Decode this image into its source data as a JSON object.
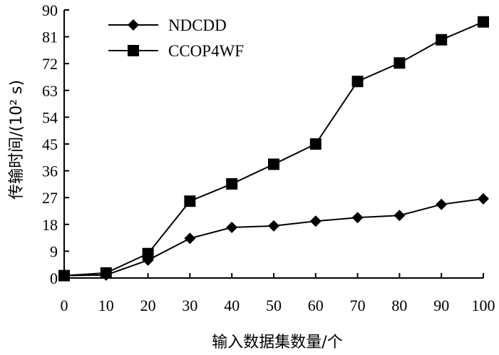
{
  "chart_data": {
    "type": "line",
    "xlabel": "输入数据集数量/个",
    "ylabel": "传输时间/(10² s)",
    "x": [
      0,
      10,
      20,
      30,
      40,
      50,
      60,
      70,
      80,
      90,
      100
    ],
    "xticks": [
      "0",
      "10",
      "20",
      "30",
      "40",
      "50",
      "60",
      "70",
      "80",
      "90",
      "100"
    ],
    "yticks": [
      "0",
      "9",
      "18",
      "27",
      "36",
      "45",
      "54",
      "63",
      "72",
      "81",
      "90"
    ],
    "xlim": [
      0,
      100
    ],
    "ylim": [
      0,
      90
    ],
    "grid": false,
    "legend_position": "top-left",
    "series": [
      {
        "name": "NDCDD",
        "marker": "diamond",
        "color": "#000000",
        "values": [
          0.8,
          1.0,
          6.0,
          13.3,
          17.0,
          17.5,
          19.1,
          20.3,
          21.0,
          24.7,
          26.6
        ]
      },
      {
        "name": "CCOP4WF",
        "marker": "square",
        "color": "#000000",
        "values": [
          0.8,
          1.7,
          8.2,
          25.8,
          31.6,
          38.2,
          45.0,
          66.0,
          72.2,
          80.0,
          86.0
        ]
      }
    ]
  }
}
